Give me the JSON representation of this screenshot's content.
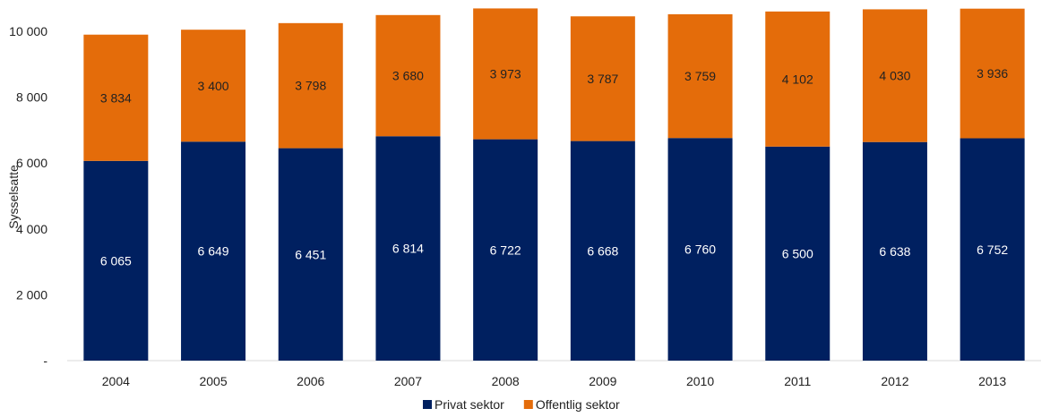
{
  "chart_data": {
    "type": "bar",
    "stacked": true,
    "categories": [
      "2004",
      "2005",
      "2006",
      "2007",
      "2008",
      "2009",
      "2010",
      "2011",
      "2012",
      "2013"
    ],
    "series": [
      {
        "name": "Privat sektor",
        "color": "#002060",
        "label_color": "#ffffff",
        "values": [
          6065,
          6649,
          6451,
          6814,
          6722,
          6668,
          6760,
          6500,
          6638,
          6752
        ],
        "labels": [
          "6 065",
          "6 649",
          "6 451",
          "6 814",
          "6 722",
          "6 668",
          "6 760",
          "6 500",
          "6 638",
          "6 752"
        ]
      },
      {
        "name": "Offentlig sektor",
        "color": "#E46C0A",
        "label_color": "#222222",
        "values": [
          3834,
          3400,
          3798,
          3680,
          3973,
          3787,
          3759,
          4102,
          4030,
          3936
        ],
        "labels": [
          "3 834",
          "3 400",
          "3 798",
          "3 680",
          "3 973",
          "3 787",
          "3 759",
          "4 102",
          "4 030",
          "3 936"
        ]
      }
    ],
    "ylabel": "Sysselsatte",
    "xlabel": "",
    "ylim": [
      0,
      10000
    ],
    "yticks": [
      {
        "value": 0,
        "label": "-"
      },
      {
        "value": 2000,
        "label": "2 000"
      },
      {
        "value": 4000,
        "label": "4 000"
      },
      {
        "value": 6000,
        "label": "6 000"
      },
      {
        "value": 8000,
        "label": "8 000"
      },
      {
        "value": 10000,
        "label": "10 000"
      }
    ],
    "grid": false,
    "legend_position": "bottom-center"
  }
}
